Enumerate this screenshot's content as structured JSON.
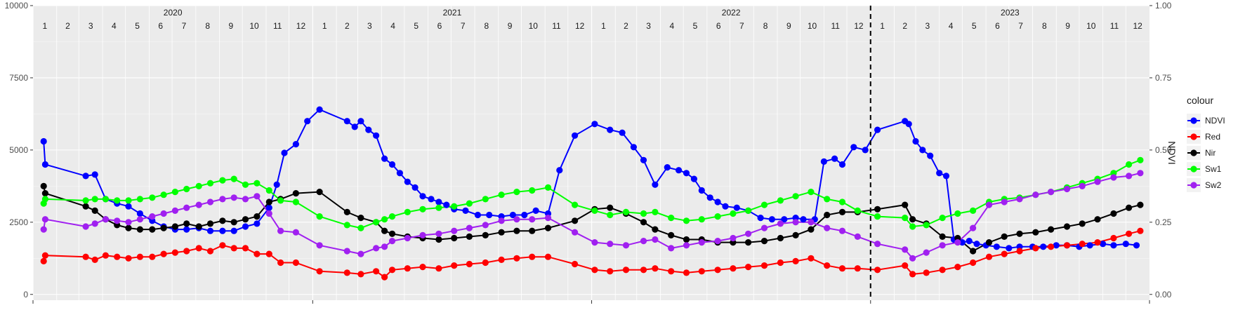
{
  "chart_data": {
    "type": "line",
    "title": "",
    "xlabel": "",
    "ylabel": "",
    "y2label": "NDVI",
    "x_range": [
      "2020-01-01",
      "2024-01-01"
    ],
    "ylim": [
      -200,
      10000
    ],
    "y2lim": [
      -0.02,
      1.0
    ],
    "yticks": [
      0,
      2500,
      5000,
      7500,
      10000
    ],
    "y2ticks": [
      "0.00",
      "0.25",
      "0.50",
      "0.75",
      "1.00"
    ],
    "years": [
      "2020",
      "2021",
      "2022",
      "2023"
    ],
    "months": [
      "1",
      "2",
      "3",
      "4",
      "5",
      "6",
      "7",
      "8",
      "9",
      "10",
      "11",
      "12"
    ],
    "divider_date": "2023-01-01",
    "legend": {
      "title": "colour",
      "position": "right"
    },
    "grid": true,
    "series": [
      {
        "name": "NDVI",
        "color": "#0000ff",
        "x": [
          "2020-01-15",
          "2020-01-17",
          "2020-03-10",
          "2020-03-22",
          "2020-04-05",
          "2020-04-20",
          "2020-05-05",
          "2020-05-20",
          "2020-06-05",
          "2020-06-20",
          "2020-07-05",
          "2020-07-20",
          "2020-08-05",
          "2020-08-20",
          "2020-09-05",
          "2020-09-20",
          "2020-10-05",
          "2020-10-20",
          "2020-11-05",
          "2020-11-15",
          "2020-11-25",
          "2020-12-10",
          "2020-12-25",
          "2021-01-10",
          "2021-02-15",
          "2021-02-25",
          "2021-03-05",
          "2021-03-15",
          "2021-03-25",
          "2021-04-05",
          "2021-04-15",
          "2021-04-25",
          "2021-05-05",
          "2021-05-15",
          "2021-05-25",
          "2021-06-05",
          "2021-06-15",
          "2021-06-25",
          "2021-07-05",
          "2021-07-20",
          "2021-08-05",
          "2021-08-20",
          "2021-09-05",
          "2021-09-20",
          "2021-10-05",
          "2021-10-20",
          "2021-11-05",
          "2021-11-20",
          "2021-12-10",
          "2022-01-05",
          "2022-01-25",
          "2022-02-10",
          "2022-02-25",
          "2022-03-10",
          "2022-03-25",
          "2022-04-10",
          "2022-04-25",
          "2022-05-05",
          "2022-05-15",
          "2022-05-25",
          "2022-06-05",
          "2022-06-15",
          "2022-06-25",
          "2022-07-10",
          "2022-07-25",
          "2022-08-10",
          "2022-08-25",
          "2022-09-10",
          "2022-09-25",
          "2022-10-05",
          "2022-10-20",
          "2022-11-01",
          "2022-11-15",
          "2022-11-25",
          "2022-12-10",
          "2022-12-25",
          "2023-01-10",
          "2023-02-15",
          "2023-02-20",
          "2023-03-01",
          "2023-03-10",
          "2023-03-20",
          "2023-04-01",
          "2023-04-10",
          "2023-04-20",
          "2023-05-01",
          "2023-05-10",
          "2023-05-20",
          "2023-06-01",
          "2023-06-15",
          "2023-07-01",
          "2023-07-15",
          "2023-08-01",
          "2023-08-15",
          "2023-09-01",
          "2023-09-15",
          "2023-10-01",
          "2023-10-15",
          "2023-11-01",
          "2023-11-15",
          "2023-12-01",
          "2023-12-15"
        ],
        "values": [
          0.53,
          0.45,
          0.41,
          0.415,
          0.33,
          0.315,
          0.305,
          0.28,
          0.255,
          0.235,
          0.225,
          0.225,
          0.23,
          0.22,
          0.22,
          0.22,
          0.235,
          0.245,
          0.3,
          0.38,
          0.49,
          0.52,
          0.6,
          0.64,
          0.6,
          0.58,
          0.6,
          0.57,
          0.55,
          0.47,
          0.45,
          0.42,
          0.39,
          0.37,
          0.34,
          0.33,
          0.32,
          0.31,
          0.295,
          0.29,
          0.275,
          0.275,
          0.27,
          0.275,
          0.275,
          0.29,
          0.28,
          0.43,
          0.55,
          0.59,
          0.57,
          0.56,
          0.51,
          0.465,
          0.38,
          0.44,
          0.43,
          0.42,
          0.4,
          0.36,
          0.335,
          0.32,
          0.305,
          0.3,
          0.29,
          0.265,
          0.26,
          0.26,
          0.265,
          0.26,
          0.26,
          0.46,
          0.47,
          0.45,
          0.51,
          0.5,
          0.57,
          0.6,
          0.59,
          0.53,
          0.5,
          0.48,
          0.42,
          0.41,
          0.19,
          0.18,
          0.185,
          0.175,
          0.17,
          0.165,
          0.16,
          0.165,
          0.165,
          0.165,
          0.17,
          0.17,
          0.165,
          0.17,
          0.175,
          0.17,
          0.175,
          0.17
        ]
      },
      {
        "name": "Red",
        "color": "#ff0000",
        "x": [
          "2020-01-15",
          "2020-01-17",
          "2020-03-10",
          "2020-03-22",
          "2020-04-05",
          "2020-04-20",
          "2020-05-05",
          "2020-05-20",
          "2020-06-05",
          "2020-06-20",
          "2020-07-05",
          "2020-07-20",
          "2020-08-05",
          "2020-08-20",
          "2020-09-05",
          "2020-09-20",
          "2020-10-05",
          "2020-10-20",
          "2020-11-05",
          "2020-11-20",
          "2020-12-10",
          "2021-01-10",
          "2021-02-15",
          "2021-03-05",
          "2021-03-25",
          "2021-04-05",
          "2021-04-15",
          "2021-05-05",
          "2021-05-25",
          "2021-06-15",
          "2021-07-05",
          "2021-07-25",
          "2021-08-15",
          "2021-09-05",
          "2021-09-25",
          "2021-10-15",
          "2021-11-05",
          "2021-12-10",
          "2022-01-05",
          "2022-01-25",
          "2022-02-15",
          "2022-03-10",
          "2022-03-25",
          "2022-04-15",
          "2022-05-05",
          "2022-05-25",
          "2022-06-15",
          "2022-07-05",
          "2022-07-25",
          "2022-08-15",
          "2022-09-05",
          "2022-09-25",
          "2022-10-15",
          "2022-11-05",
          "2022-11-25",
          "2022-12-15",
          "2023-01-10",
          "2023-02-15",
          "2023-02-25",
          "2023-03-15",
          "2023-04-05",
          "2023-04-25",
          "2023-05-15",
          "2023-06-05",
          "2023-06-25",
          "2023-07-15",
          "2023-08-05",
          "2023-08-25",
          "2023-09-15",
          "2023-10-05",
          "2023-10-25",
          "2023-11-15",
          "2023-12-05",
          "2023-12-20"
        ],
        "values": [
          1150,
          1350,
          1300,
          1200,
          1350,
          1300,
          1250,
          1300,
          1300,
          1400,
          1450,
          1500,
          1600,
          1500,
          1700,
          1600,
          1600,
          1400,
          1400,
          1100,
          1100,
          800,
          750,
          700,
          800,
          600,
          850,
          900,
          950,
          900,
          1000,
          1050,
          1100,
          1200,
          1250,
          1300,
          1300,
          1050,
          850,
          800,
          850,
          850,
          900,
          800,
          750,
          800,
          850,
          900,
          950,
          1000,
          1100,
          1150,
          1250,
          1000,
          900,
          900,
          850,
          1000,
          700,
          750,
          850,
          950,
          1100,
          1300,
          1400,
          1500,
          1600,
          1650,
          1700,
          1750,
          1800,
          1950,
          2100,
          2200
        ]
      },
      {
        "name": "Nir",
        "color": "#000000",
        "x": [
          "2020-01-15",
          "2020-01-17",
          "2020-03-10",
          "2020-03-22",
          "2020-04-05",
          "2020-04-20",
          "2020-05-05",
          "2020-05-20",
          "2020-06-05",
          "2020-06-20",
          "2020-07-05",
          "2020-07-20",
          "2020-08-05",
          "2020-08-20",
          "2020-09-05",
          "2020-09-20",
          "2020-10-05",
          "2020-10-20",
          "2020-11-05",
          "2020-11-20",
          "2020-12-10",
          "2021-01-10",
          "2021-02-15",
          "2021-03-05",
          "2021-03-25",
          "2021-04-05",
          "2021-04-15",
          "2021-05-05",
          "2021-05-25",
          "2021-06-15",
          "2021-07-05",
          "2021-07-25",
          "2021-08-15",
          "2021-09-05",
          "2021-09-25",
          "2021-10-15",
          "2021-11-05",
          "2021-12-10",
          "2022-01-05",
          "2022-01-25",
          "2022-02-15",
          "2022-03-10",
          "2022-03-25",
          "2022-04-15",
          "2022-05-05",
          "2022-05-25",
          "2022-06-15",
          "2022-07-05",
          "2022-07-25",
          "2022-08-15",
          "2022-09-05",
          "2022-09-25",
          "2022-10-15",
          "2022-11-05",
          "2022-11-25",
          "2022-12-15",
          "2023-01-10",
          "2023-02-15",
          "2023-02-25",
          "2023-03-15",
          "2023-04-05",
          "2023-04-25",
          "2023-05-15",
          "2023-06-05",
          "2023-06-25",
          "2023-07-15",
          "2023-08-05",
          "2023-08-25",
          "2023-09-15",
          "2023-10-05",
          "2023-10-25",
          "2023-11-15",
          "2023-12-05",
          "2023-12-20"
        ],
        "values": [
          3750,
          3500,
          3050,
          2900,
          2600,
          2400,
          2300,
          2250,
          2250,
          2300,
          2350,
          2450,
          2350,
          2450,
          2550,
          2500,
          2600,
          2700,
          3200,
          3300,
          3500,
          3550,
          2850,
          2650,
          2500,
          2200,
          2100,
          2000,
          1950,
          1900,
          1950,
          2000,
          2050,
          2150,
          2200,
          2200,
          2300,
          2550,
          2950,
          3000,
          2800,
          2500,
          2250,
          2050,
          1900,
          1900,
          1800,
          1800,
          1800,
          1850,
          1950,
          2050,
          2250,
          2750,
          2850,
          2850,
          2950,
          3100,
          2600,
          2450,
          2000,
          1950,
          1500,
          1800,
          2000,
          2100,
          2150,
          2250,
          2350,
          2450,
          2600,
          2800,
          3000,
          3100
        ]
      },
      {
        "name": "Sw1",
        "color": "#00ff00",
        "x": [
          "2020-01-15",
          "2020-01-17",
          "2020-03-10",
          "2020-03-22",
          "2020-04-05",
          "2020-04-20",
          "2020-05-05",
          "2020-05-20",
          "2020-06-05",
          "2020-06-20",
          "2020-07-05",
          "2020-07-20",
          "2020-08-05",
          "2020-08-20",
          "2020-09-05",
          "2020-09-20",
          "2020-10-05",
          "2020-10-20",
          "2020-11-05",
          "2020-11-20",
          "2020-12-10",
          "2021-01-10",
          "2021-02-15",
          "2021-03-05",
          "2021-03-25",
          "2021-04-05",
          "2021-04-15",
          "2021-05-05",
          "2021-05-25",
          "2021-06-15",
          "2021-07-05",
          "2021-07-25",
          "2021-08-15",
          "2021-09-05",
          "2021-09-25",
          "2021-10-15",
          "2021-11-05",
          "2021-12-10",
          "2022-01-05",
          "2022-01-25",
          "2022-02-15",
          "2022-03-10",
          "2022-03-25",
          "2022-04-15",
          "2022-05-05",
          "2022-05-25",
          "2022-06-15",
          "2022-07-05",
          "2022-07-25",
          "2022-08-15",
          "2022-09-05",
          "2022-09-25",
          "2022-10-15",
          "2022-11-05",
          "2022-11-25",
          "2022-12-15",
          "2023-01-10",
          "2023-02-15",
          "2023-02-25",
          "2023-03-15",
          "2023-04-05",
          "2023-04-25",
          "2023-05-15",
          "2023-06-05",
          "2023-06-25",
          "2023-07-15",
          "2023-08-05",
          "2023-08-25",
          "2023-09-15",
          "2023-10-05",
          "2023-10-25",
          "2023-11-15",
          "2023-12-05",
          "2023-12-20"
        ],
        "values": [
          3150,
          3300,
          3250,
          3300,
          3300,
          3250,
          3250,
          3300,
          3350,
          3450,
          3550,
          3650,
          3750,
          3850,
          3950,
          4000,
          3800,
          3850,
          3600,
          3250,
          3200,
          2700,
          2400,
          2300,
          2500,
          2600,
          2700,
          2850,
          2950,
          3000,
          3050,
          3150,
          3300,
          3450,
          3550,
          3600,
          3700,
          3100,
          2900,
          2750,
          2850,
          2800,
          2850,
          2650,
          2550,
          2600,
          2700,
          2800,
          2900,
          3100,
          3250,
          3400,
          3550,
          3300,
          3200,
          2900,
          2700,
          2650,
          2350,
          2400,
          2650,
          2800,
          2900,
          3200,
          3300,
          3350,
          3450,
          3550,
          3700,
          3850,
          4000,
          4200,
          4500,
          4650
        ]
      },
      {
        "name": "Sw2",
        "color": "#a020f0",
        "x": [
          "2020-01-15",
          "2020-01-17",
          "2020-03-10",
          "2020-03-22",
          "2020-04-05",
          "2020-04-20",
          "2020-05-05",
          "2020-05-20",
          "2020-06-05",
          "2020-06-20",
          "2020-07-05",
          "2020-07-20",
          "2020-08-05",
          "2020-08-20",
          "2020-09-05",
          "2020-09-20",
          "2020-10-05",
          "2020-10-20",
          "2020-11-05",
          "2020-11-20",
          "2020-12-10",
          "2021-01-10",
          "2021-02-15",
          "2021-03-05",
          "2021-03-25",
          "2021-04-05",
          "2021-04-15",
          "2021-05-05",
          "2021-05-25",
          "2021-06-15",
          "2021-07-05",
          "2021-07-25",
          "2021-08-15",
          "2021-09-05",
          "2021-09-25",
          "2021-10-15",
          "2021-11-05",
          "2021-12-10",
          "2022-01-05",
          "2022-01-25",
          "2022-02-15",
          "2022-03-10",
          "2022-03-25",
          "2022-04-15",
          "2022-05-05",
          "2022-05-25",
          "2022-06-15",
          "2022-07-05",
          "2022-07-25",
          "2022-08-15",
          "2022-09-05",
          "2022-09-25",
          "2022-10-15",
          "2022-11-05",
          "2022-11-25",
          "2022-12-15",
          "2023-01-10",
          "2023-02-15",
          "2023-02-25",
          "2023-03-15",
          "2023-04-05",
          "2023-04-25",
          "2023-05-15",
          "2023-06-05",
          "2023-06-25",
          "2023-07-15",
          "2023-08-05",
          "2023-08-25",
          "2023-09-15",
          "2023-10-05",
          "2023-10-25",
          "2023-11-15",
          "2023-12-05",
          "2023-12-20"
        ],
        "values": [
          2250,
          2600,
          2350,
          2450,
          2600,
          2550,
          2500,
          2600,
          2700,
          2800,
          2900,
          3000,
          3100,
          3200,
          3300,
          3350,
          3300,
          3400,
          2800,
          2200,
          2150,
          1700,
          1500,
          1400,
          1600,
          1650,
          1850,
          1950,
          2050,
          2100,
          2200,
          2300,
          2400,
          2550,
          2600,
          2600,
          2650,
          2150,
          1800,
          1750,
          1700,
          1850,
          1900,
          1600,
          1700,
          1800,
          1850,
          1950,
          2100,
          2300,
          2450,
          2500,
          2500,
          2300,
          2200,
          2000,
          1750,
          1550,
          1250,
          1450,
          1700,
          1800,
          2300,
          3100,
          3200,
          3300,
          3450,
          3550,
          3650,
          3750,
          3900,
          4050,
          4100,
          4200
        ]
      }
    ]
  }
}
